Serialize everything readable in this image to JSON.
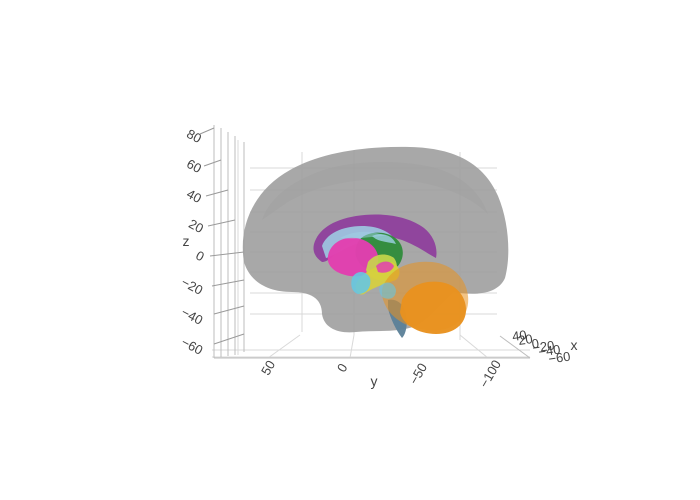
{
  "chart_data": {
    "type": "3d-mesh",
    "axes": {
      "x": {
        "label": "x",
        "ticks": [
          "40",
          "20",
          "0",
          "−20",
          "−40",
          "−60"
        ]
      },
      "y": {
        "label": "y",
        "ticks": [
          "50",
          "0",
          "−50",
          "−100"
        ]
      },
      "z": {
        "label": "z",
        "ticks": [
          "80",
          "60",
          "40",
          "20",
          "0",
          "−20",
          "−40",
          "−60"
        ]
      }
    },
    "meshes": [
      {
        "structure": "brain-surface",
        "color": "#9e9e9e"
      },
      {
        "structure": "lateral-ventricle",
        "color": "#8e3f9c"
      },
      {
        "structure": "caudate",
        "color": "#9fd2e6"
      },
      {
        "structure": "thalamus",
        "color": "#2e8b3a"
      },
      {
        "structure": "putamen",
        "color": "#e23fb0"
      },
      {
        "structure": "pallidum",
        "color": "#c8d84a"
      },
      {
        "structure": "hippocampus",
        "color": "#d7cf3c"
      },
      {
        "structure": "amygdala",
        "color": "#67c7e0"
      },
      {
        "structure": "cerebellum",
        "color": "#e8921f"
      },
      {
        "structure": "brainstem",
        "color": "#5b7f98"
      }
    ]
  }
}
